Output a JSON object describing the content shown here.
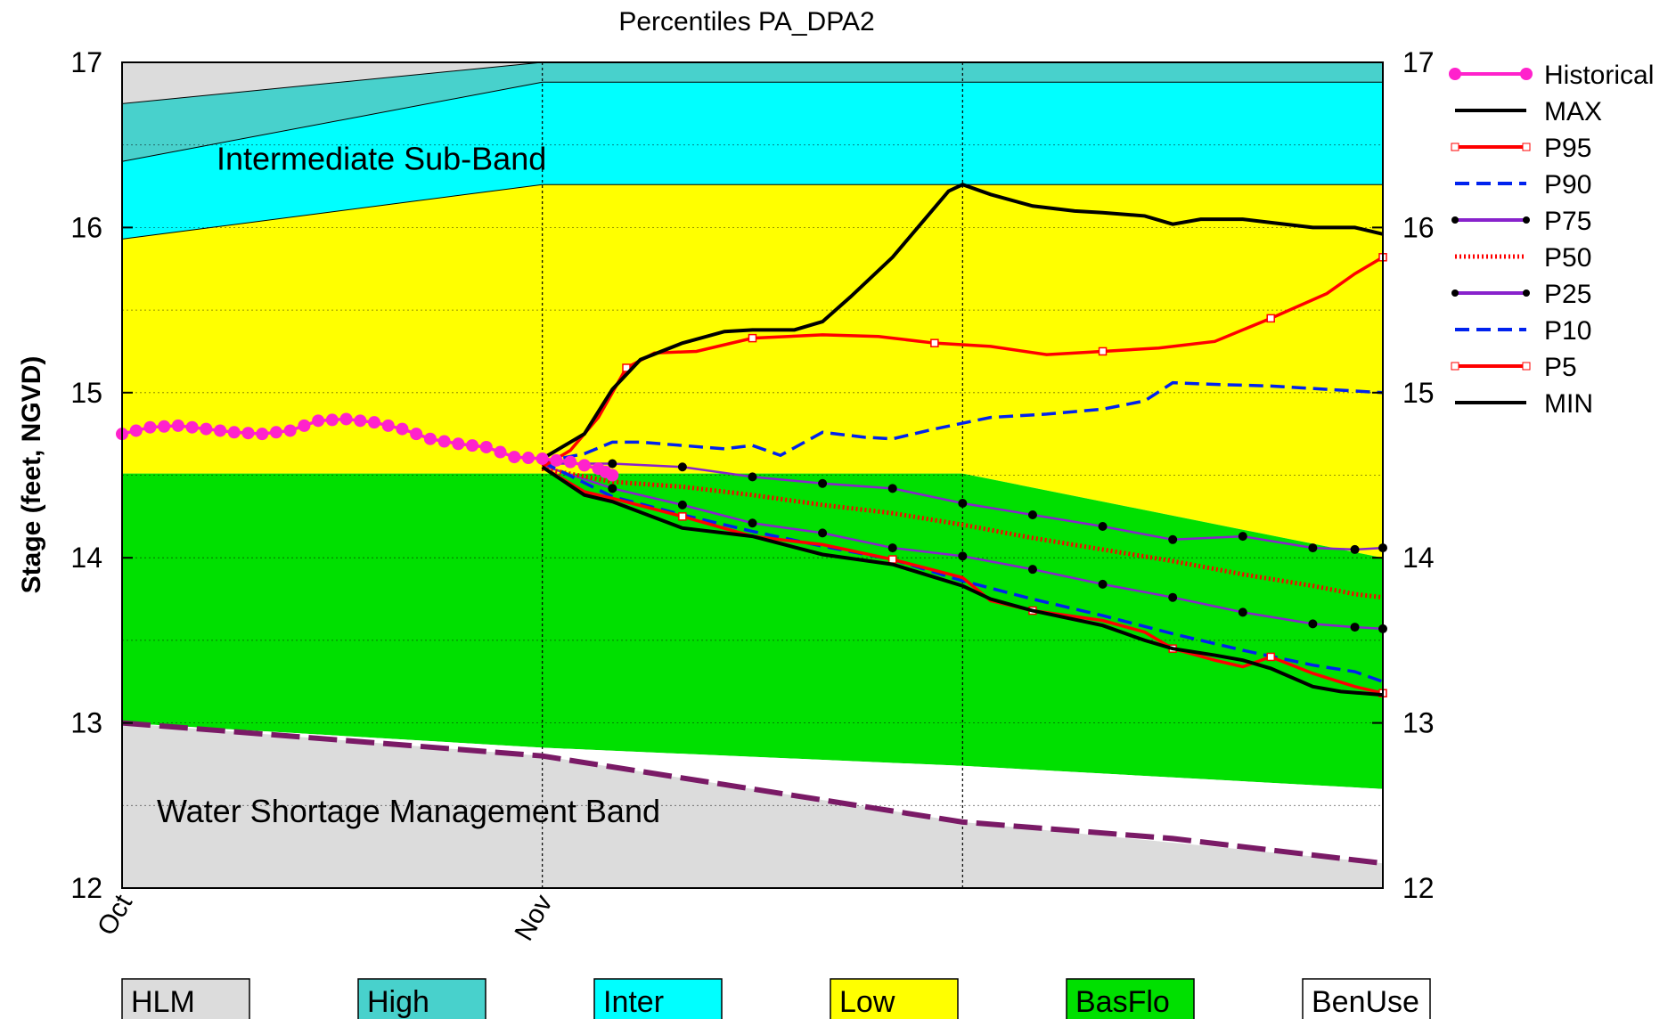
{
  "chart_data": {
    "type": "line",
    "title": "Percentiles PA_DPA2",
    "ylabel": "Stage (feet, NGVD)",
    "xlabel": "",
    "ylim": [
      12,
      17
    ],
    "yticks": [
      "12",
      "13",
      "14",
      "15",
      "16",
      "17"
    ],
    "x_tick_labels": [
      "Oct",
      "Nov"
    ],
    "grid": "dotted",
    "x_domain": [
      0,
      90
    ],
    "band_x": [
      0,
      30,
      60,
      90
    ],
    "bands": {
      "hlm_top": [
        17.0,
        17.0,
        17.0,
        17.0
      ],
      "high_top": [
        16.75,
        17.0,
        17.0,
        17.0
      ],
      "inter_top": [
        16.4,
        16.88,
        16.88,
        16.88
      ],
      "low_top": [
        15.93,
        16.26,
        16.26,
        16.26
      ],
      "basflo_top": [
        14.51,
        14.51,
        14.51,
        14.0
      ],
      "benuse_top": [
        13.0,
        12.85,
        12.74,
        12.6
      ],
      "wsm_top": [
        13.0,
        12.8,
        12.4,
        12.15
      ]
    },
    "band_colors": {
      "hlm": "#dcdcdc",
      "high": "#48d1cc",
      "inter": "#00ffff",
      "low": "#ffff00",
      "basflo": "#00e000",
      "benuse": "#ffffff",
      "wsm": "#dcdcdc"
    },
    "band_labels": [
      {
        "text": "Intermediate Sub-Band",
        "key": "inter"
      },
      {
        "text": "Water Shortage Management Band",
        "key": "wsm"
      }
    ],
    "legend_position": "right",
    "series": [
      {
        "name": "Historical",
        "color": "#ff22cc",
        "style": "solid",
        "marker": "dot",
        "x": [
          0,
          2,
          4,
          6,
          8,
          10,
          12,
          14,
          16,
          18,
          20,
          22,
          24,
          26,
          28,
          30,
          32,
          34,
          35
        ],
        "values": [
          14.75,
          14.79,
          14.8,
          14.78,
          14.76,
          14.75,
          14.77,
          14.83,
          14.84,
          14.82,
          14.78,
          14.72,
          14.69,
          14.67,
          14.61,
          14.6,
          14.58,
          14.54,
          14.5
        ]
      },
      {
        "name": "MAX",
        "color": "#000000",
        "style": "solid",
        "marker": "none",
        "x": [
          30,
          33,
          35,
          37,
          40,
          43,
          45,
          48,
          50,
          52,
          55,
          57,
          59,
          60,
          62,
          65,
          68,
          70,
          73,
          75,
          77,
          80,
          82,
          85,
          88,
          90
        ],
        "values": [
          14.6,
          14.75,
          15.02,
          15.2,
          15.3,
          15.37,
          15.38,
          15.38,
          15.43,
          15.58,
          15.82,
          16.02,
          16.22,
          16.26,
          16.2,
          16.13,
          16.1,
          16.09,
          16.07,
          16.02,
          16.05,
          16.05,
          16.03,
          16.0,
          16.0,
          15.96
        ]
      },
      {
        "name": "P95",
        "color": "#ff0000",
        "style": "solid",
        "marker": "square",
        "x": [
          30,
          32,
          34,
          36,
          38,
          41,
          45,
          50,
          54,
          58,
          62,
          66,
          70,
          74,
          78,
          82,
          86,
          88,
          90
        ],
        "values": [
          14.55,
          14.65,
          14.85,
          15.15,
          15.24,
          15.25,
          15.33,
          15.35,
          15.34,
          15.3,
          15.28,
          15.23,
          15.25,
          15.27,
          15.31,
          15.45,
          15.6,
          15.72,
          15.82
        ]
      },
      {
        "name": "P90",
        "color": "#0022ee",
        "style": "dashed",
        "marker": "none",
        "x": [
          30,
          33,
          35,
          37,
          40,
          43,
          45,
          47,
          50,
          53,
          55,
          58,
          62,
          66,
          70,
          73,
          75,
          78,
          82,
          86,
          90
        ],
        "values": [
          14.58,
          14.63,
          14.7,
          14.7,
          14.68,
          14.66,
          14.68,
          14.62,
          14.76,
          14.73,
          14.72,
          14.78,
          14.85,
          14.87,
          14.9,
          14.95,
          15.06,
          15.05,
          15.04,
          15.02,
          15.0
        ]
      },
      {
        "name": "P75",
        "color": "#8822cc",
        "style": "solid",
        "marker": "dot",
        "x": [
          30,
          35,
          40,
          45,
          50,
          55,
          60,
          65,
          70,
          75,
          80,
          85,
          88,
          90
        ],
        "values": [
          14.57,
          14.57,
          14.55,
          14.49,
          14.45,
          14.42,
          14.33,
          14.26,
          14.19,
          14.11,
          14.13,
          14.06,
          14.05,
          14.06
        ]
      },
      {
        "name": "P50",
        "color": "#ff0000",
        "style": "dotted",
        "marker": "none",
        "x": [
          30,
          35,
          40,
          45,
          50,
          55,
          60,
          65,
          70,
          75,
          80,
          85,
          88,
          90
        ],
        "values": [
          14.54,
          14.46,
          14.43,
          14.38,
          14.32,
          14.27,
          14.2,
          14.12,
          14.05,
          13.98,
          13.9,
          13.83,
          13.78,
          13.76
        ]
      },
      {
        "name": "P25",
        "color": "#8822cc",
        "style": "solid",
        "marker": "dot",
        "x": [
          30,
          35,
          40,
          45,
          50,
          55,
          60,
          65,
          70,
          75,
          80,
          85,
          88,
          90
        ],
        "values": [
          14.56,
          14.42,
          14.32,
          14.21,
          14.15,
          14.06,
          14.01,
          13.93,
          13.84,
          13.76,
          13.67,
          13.6,
          13.58,
          13.57
        ]
      },
      {
        "name": "P10",
        "color": "#0022ee",
        "style": "dashed",
        "marker": "none",
        "x": [
          30,
          35,
          40,
          45,
          50,
          55,
          60,
          65,
          70,
          75,
          80,
          85,
          88,
          90
        ],
        "values": [
          14.58,
          14.37,
          14.26,
          14.16,
          14.07,
          13.99,
          13.86,
          13.75,
          13.65,
          13.54,
          13.44,
          13.35,
          13.31,
          13.25
        ]
      },
      {
        "name": "P5",
        "color": "#ff0000",
        "style": "solid",
        "marker": "square",
        "x": [
          30,
          33,
          35,
          40,
          45,
          50,
          55,
          60,
          62,
          65,
          70,
          73,
          75,
          78,
          80,
          82,
          85,
          88,
          90
        ],
        "values": [
          14.55,
          14.4,
          14.36,
          14.25,
          14.13,
          14.08,
          13.99,
          13.88,
          13.74,
          13.68,
          13.62,
          13.55,
          13.45,
          13.38,
          13.34,
          13.4,
          13.3,
          13.22,
          13.18
        ]
      },
      {
        "name": "MIN",
        "color": "#000000",
        "style": "solid",
        "marker": "none",
        "x": [
          30,
          33,
          35,
          40,
          45,
          50,
          55,
          60,
          62,
          65,
          70,
          73,
          75,
          78,
          80,
          82,
          85,
          87,
          90
        ],
        "values": [
          14.55,
          14.38,
          14.34,
          14.18,
          14.13,
          14.02,
          13.96,
          13.83,
          13.75,
          13.68,
          13.59,
          13.5,
          13.45,
          13.41,
          13.38,
          13.33,
          13.22,
          13.19,
          13.17
        ]
      }
    ],
    "benuse_line": {
      "name": "",
      "color": "#7a1a66",
      "x": [
        0,
        30,
        45,
        60,
        75,
        90
      ],
      "values": [
        13.0,
        12.8,
        12.6,
        12.4,
        12.3,
        12.15
      ]
    },
    "bottom_legend": [
      {
        "label": "HLM",
        "color": "#dcdcdc"
      },
      {
        "label": "High",
        "color": "#48d1cc"
      },
      {
        "label": "Inter",
        "color": "#00ffff"
      },
      {
        "label": "Low",
        "color": "#ffff00"
      },
      {
        "label": "BasFlo",
        "color": "#00e000"
      },
      {
        "label": "BenUse",
        "color": "#ffffff"
      }
    ]
  }
}
